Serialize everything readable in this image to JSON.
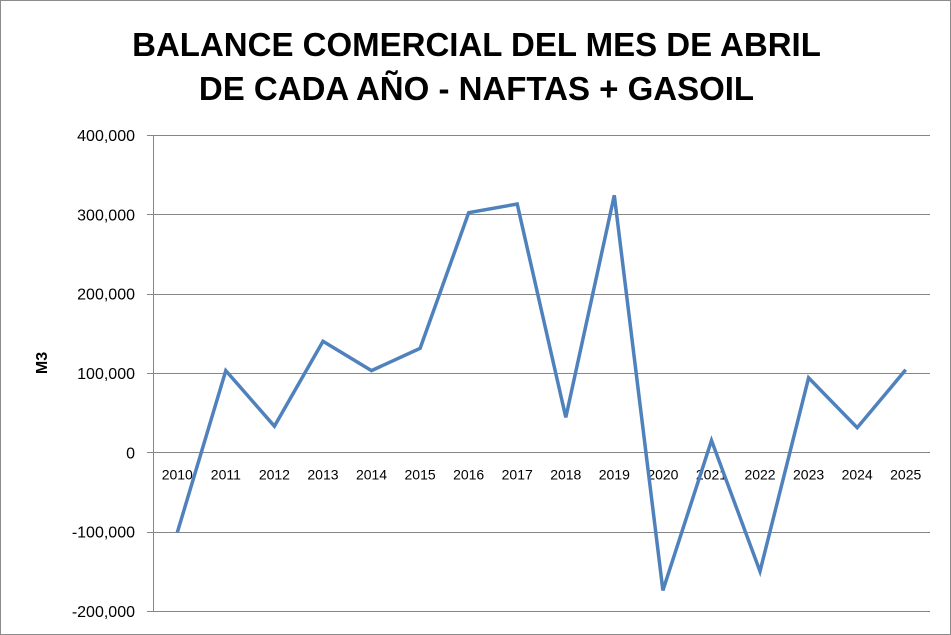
{
  "chart_data": {
    "type": "line",
    "title_lines": [
      "BALANCE COMERCIAL DEL MES DE ABRIL",
      "DE CADA AÑO - NAFTAS + GASOIL"
    ],
    "xlabel": "",
    "ylabel": "M3",
    "x": [
      "2010",
      "2011",
      "2012",
      "2013",
      "2014",
      "2015",
      "2016",
      "2017",
      "2018",
      "2019",
      "2020",
      "2021",
      "2022",
      "2023",
      "2024",
      "2025"
    ],
    "values": [
      -101000,
      103000,
      33000,
      140000,
      103000,
      131000,
      302000,
      313000,
      44000,
      324000,
      -174000,
      15000,
      -150000,
      94000,
      31000,
      104000
    ],
    "ylim": [
      -200000,
      400000
    ],
    "yticks": [
      400000,
      300000,
      200000,
      100000,
      0,
      -100000,
      -200000
    ],
    "ytick_labels": [
      "400,000",
      "300,000",
      "200,000",
      "100,000",
      "0",
      "-100,000",
      "-200,000"
    ],
    "grid": true,
    "line_color": "#4f81bd",
    "grid_color": "#868686"
  }
}
